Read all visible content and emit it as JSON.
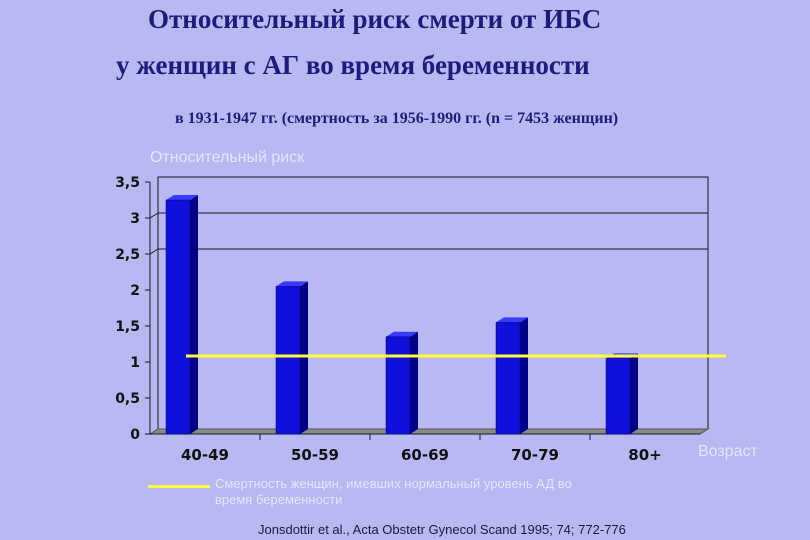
{
  "title_line1": "Относительный риск смерти от ИБС",
  "title_line2": "у женщин с АГ во время беременности",
  "subtitle": "в 1931-1947 гг. (смертность за 1956-1990 гг.  (n = 7453 женщин)",
  "source": "Jonsdottir et al., Acta Obstetr Gynecol Scand 1995; 74; 772-776",
  "colors": {
    "bar": "#1010dd",
    "reference_line": "#ffff33",
    "background": "#b8b8f2"
  },
  "chart_data": {
    "type": "bar",
    "ylabel": "Относительный риск",
    "xlabel": "Возраст",
    "categories": [
      "40-49",
      "50-59",
      "60-69",
      "70-79",
      "80+"
    ],
    "values": [
      3.25,
      2.05,
      1.35,
      1.55,
      1.05
    ],
    "ylim": [
      0,
      3.5
    ],
    "yticks": [
      "0",
      "0,5",
      "1",
      "1,5",
      "2",
      "2,5",
      "3",
      "3,5"
    ],
    "gridlines_at": [
      3,
      2.5
    ],
    "reference_line": {
      "value": 1.0,
      "label": "Смертность женщин, имевших нормальный уровень АД во время беременности"
    }
  }
}
